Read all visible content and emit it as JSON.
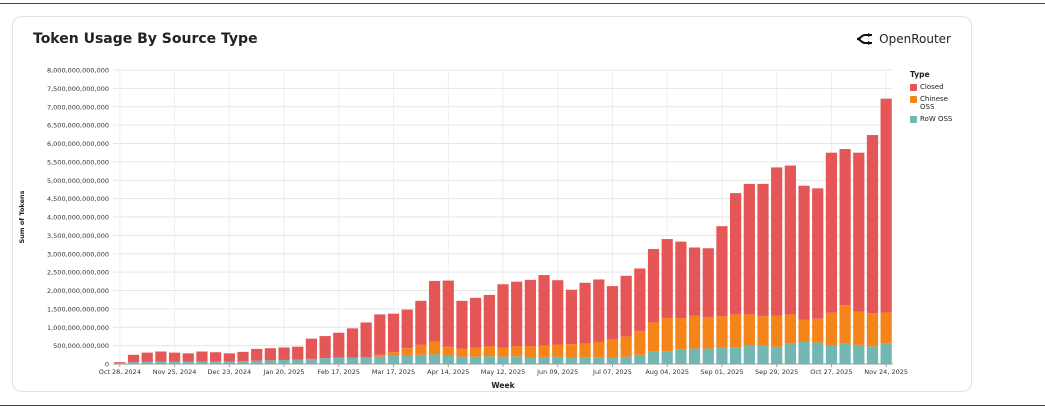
{
  "chart_data": {
    "type": "bar",
    "stacked": true,
    "title": "Token Usage By Source Type",
    "xlabel": "Week",
    "ylabel": "Sum of Tokens",
    "ylim": [
      0,
      8000000000000
    ],
    "yticks": [
      0,
      500000000000,
      1000000000000,
      1500000000000,
      2000000000000,
      2500000000000,
      3000000000000,
      3500000000000,
      4000000000000,
      4500000000000,
      5000000000000,
      5500000000000,
      6000000000000,
      6500000000000,
      7000000000000,
      7500000000000,
      8000000000000
    ],
    "ytick_labels": [
      "0",
      "500,000,000,000",
      "1,000,000,000,000",
      "1,500,000,000,000",
      "2,000,000,000,000",
      "2,500,000,000,000",
      "3,000,000,000,000",
      "3,500,000,000,000",
      "4,000,000,000,000",
      "4,500,000,000,000",
      "5,000,000,000,000",
      "5,500,000,000,000",
      "6,000,000,000,000",
      "6,500,000,000,000",
      "7,000,000,000,000",
      "7,500,000,000,000",
      "8,000,000,000,000"
    ],
    "xtick_labels": [
      {
        "index": 0,
        "label": "Oct 28, 2024"
      },
      {
        "index": 4,
        "label": "Nov 25, 2024"
      },
      {
        "index": 8,
        "label": "Dec 23, 2024"
      },
      {
        "index": 12,
        "label": "Jan 20, 2025"
      },
      {
        "index": 16,
        "label": "Feb 17, 2025"
      },
      {
        "index": 20,
        "label": "Mar 17, 2025"
      },
      {
        "index": 24,
        "label": "Apr 14, 2025"
      },
      {
        "index": 28,
        "label": "May 12, 2025"
      },
      {
        "index": 32,
        "label": "Jun 09, 2025"
      },
      {
        "index": 36,
        "label": "Jul 07, 2025"
      },
      {
        "index": 40,
        "label": "Aug 04, 2025"
      },
      {
        "index": 44,
        "label": "Sep 01, 2025"
      },
      {
        "index": 48,
        "label": "Sep 29, 2025"
      },
      {
        "index": 52,
        "label": "Oct 27, 2025"
      },
      {
        "index": 56,
        "label": "Nov 24, 2025"
      }
    ],
    "grid": true,
    "legend_title": "Type",
    "legend_position": "right",
    "series": [
      {
        "name": "Closed",
        "color": "#e45756",
        "values": [
          0.03,
          0.2,
          0.25,
          0.27,
          0.25,
          0.23,
          0.27,
          0.25,
          0.22,
          0.25,
          0.32,
          0.33,
          0.34,
          0.35,
          0.55,
          0.6,
          0.68,
          0.8,
          0.95,
          1.1,
          1.05,
          1.05,
          1.2,
          1.65,
          1.8,
          1.3,
          1.35,
          1.4,
          1.72,
          1.75,
          1.8,
          1.92,
          1.75,
          1.48,
          1.65,
          1.7,
          1.45,
          1.65,
          1.7,
          2.0,
          2.15,
          2.08,
          1.85,
          1.88,
          2.45,
          3.3,
          3.55,
          3.6,
          4.03,
          4.05,
          3.65,
          3.55,
          4.35,
          4.25,
          4.33,
          4.85,
          5.82
        ]
      },
      {
        "name": "Chinese OSS",
        "color": "#f58518",
        "values": [
          0,
          0,
          0,
          0,
          0,
          0,
          0,
          0,
          0,
          0,
          0,
          0,
          0,
          0,
          0,
          0,
          0,
          0,
          0,
          0.05,
          0.1,
          0.2,
          0.27,
          0.35,
          0.25,
          0.22,
          0.25,
          0.27,
          0.25,
          0.28,
          0.3,
          0.32,
          0.33,
          0.35,
          0.38,
          0.42,
          0.48,
          0.55,
          0.65,
          0.8,
          0.9,
          0.85,
          0.9,
          0.85,
          0.85,
          0.9,
          0.85,
          0.8,
          0.85,
          0.8,
          0.6,
          0.65,
          0.9,
          1.05,
          0.9,
          0.9,
          0.85
        ]
      },
      {
        "name": "RoW OSS",
        "color": "#72b7b2",
        "values": [
          0.02,
          0.05,
          0.06,
          0.07,
          0.06,
          0.06,
          0.07,
          0.07,
          0.07,
          0.08,
          0.09,
          0.1,
          0.11,
          0.12,
          0.14,
          0.16,
          0.17,
          0.17,
          0.18,
          0.2,
          0.22,
          0.23,
          0.25,
          0.26,
          0.22,
          0.2,
          0.2,
          0.21,
          0.2,
          0.21,
          0.19,
          0.18,
          0.2,
          0.19,
          0.18,
          0.18,
          0.19,
          0.2,
          0.25,
          0.33,
          0.35,
          0.4,
          0.42,
          0.42,
          0.45,
          0.45,
          0.5,
          0.5,
          0.47,
          0.55,
          0.6,
          0.58,
          0.5,
          0.55,
          0.52,
          0.48,
          0.55
        ]
      }
    ],
    "value_unit_multiplier": 1000000000000
  },
  "brand": {
    "name": "OpenRouter",
    "icon": "openrouter-logo-icon"
  }
}
